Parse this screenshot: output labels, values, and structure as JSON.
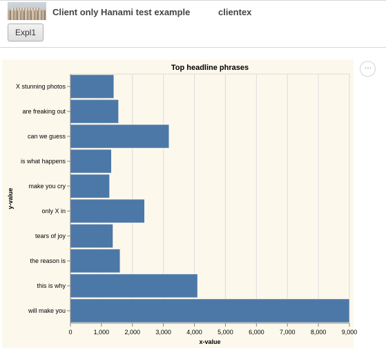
{
  "header": {
    "app_title": "Client only Hanami test example",
    "user": "clientex",
    "thumbnail_icon": "city-photo-thumbnail"
  },
  "toolbar": {
    "expl_button_label": "Expl1"
  },
  "chart_menu": {
    "icon": "more-horizontal-icon",
    "glyph": "···"
  },
  "chart_data": {
    "type": "bar",
    "orientation": "horizontal",
    "title": "Top headline phrases",
    "xlabel": "x-value",
    "ylabel": "y-value",
    "categories": [
      "X stunning photos",
      "are freaking out",
      "can we guess",
      "is what happens",
      "make you cry",
      "only X in",
      "tears of joy",
      "the reason is",
      "this is why",
      "will make you"
    ],
    "values": [
      1400,
      1550,
      3180,
      1320,
      1260,
      2390,
      1370,
      1600,
      4100,
      9000
    ],
    "x_ticks": [
      "0",
      "1,000",
      "2,000",
      "3,000",
      "4,000",
      "5,000",
      "6,000",
      "7,000",
      "8,000",
      "9,000"
    ],
    "xlim": [
      0,
      9000
    ],
    "grid": true,
    "bar_color": "#4c78a8",
    "background_color": "#fcf8ec"
  }
}
